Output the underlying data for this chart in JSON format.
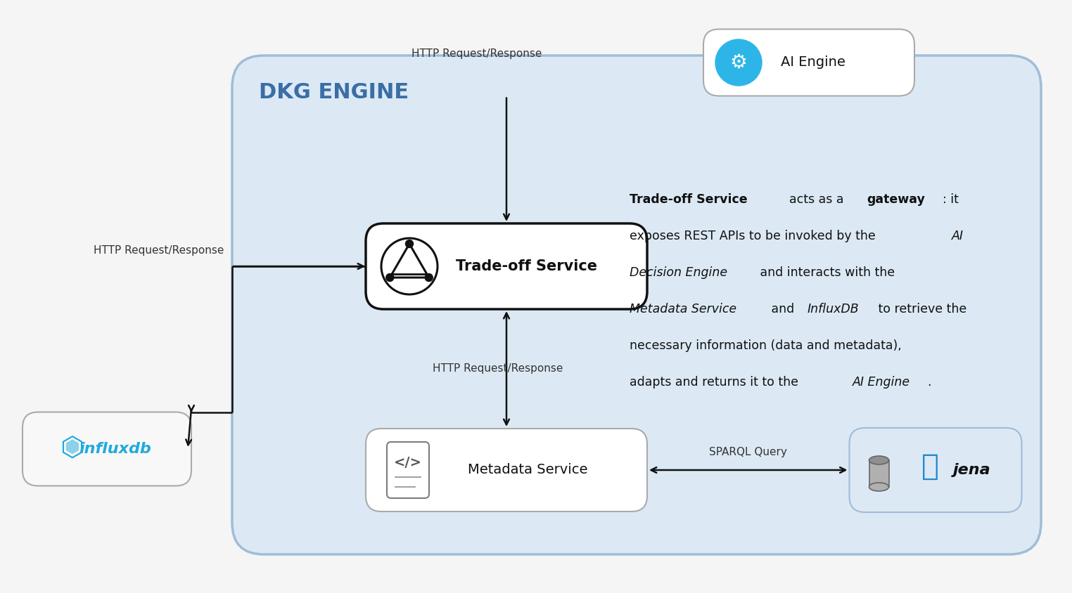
{
  "bg": "#f5f5f5",
  "dkg_fill": "#dce9f5",
  "dkg_border": "#a0bcd8",
  "box_fill": "#ffffff",
  "box_border_light": "#aaaaaa",
  "box_border_dark": "#111111",
  "arrow_col": "#111111",
  "accent_blue": "#3a6ea5",
  "influx_blue": "#22aadd",
  "ai_circle": "#2eb5e8",
  "text_dark": "#111111",
  "text_mid": "#333333",
  "dkg_label": "DKG ENGINE",
  "ai_label": "AI Engine",
  "ts_label": "Trade-off Service",
  "ms_label": "Metadata Service",
  "influx_label": "influxdb",
  "jena_label": "jena",
  "http_top_label": "HTTP Request/Response",
  "http_left_label": "HTTP Request/Response",
  "http_bot_label": "HTTP Request/Response",
  "sparql_label": "SPARQL Query",
  "desc_lines": [
    [
      [
        "Trade-off Service",
        "bold"
      ],
      [
        "  acts as a ",
        "normal"
      ],
      [
        "gateway",
        "bold"
      ],
      [
        ": it",
        "normal"
      ]
    ],
    [
      [
        "exposes REST APIs to be invoked by the ",
        "normal"
      ],
      [
        "AI",
        "italic"
      ]
    ],
    [
      [
        "Decision Engine",
        "italic"
      ],
      [
        " and interacts with the",
        "normal"
      ]
    ],
    [
      [
        "Metadata Service",
        "italic"
      ],
      [
        " and ",
        "normal"
      ],
      [
        "InfluxDB",
        "italic"
      ],
      [
        " to retrieve the",
        "normal"
      ]
    ],
    [
      [
        "necessary information (data and metadata),",
        "normal"
      ]
    ],
    [
      [
        "adapts and returns it to the ",
        "normal"
      ],
      [
        "AI Engine",
        "italic"
      ],
      [
        ".",
        "normal"
      ]
    ]
  ]
}
